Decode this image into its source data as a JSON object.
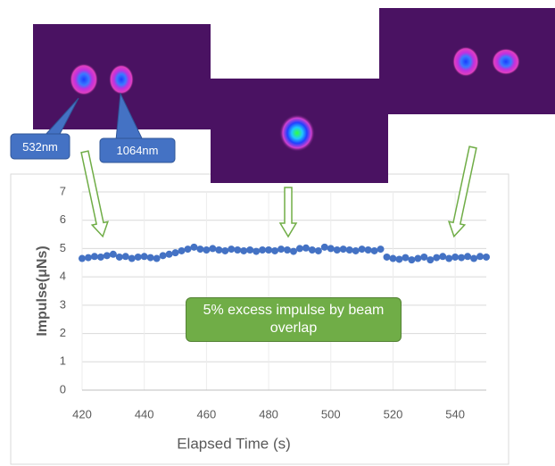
{
  "chart_data": {
    "type": "scatter",
    "x_label": "Elapsed Time (s)",
    "y_label": "Impulse(μNs)",
    "annotations": [
      "532nm",
      "1064nm",
      "5% excess impulse by beam overlap"
    ],
    "x": [
      420,
      422,
      424,
      426,
      428,
      430,
      432,
      434,
      436,
      438,
      440,
      442,
      444,
      446,
      448,
      450,
      452,
      454,
      456,
      458,
      460,
      462,
      464,
      466,
      468,
      470,
      472,
      474,
      476,
      478,
      480,
      482,
      484,
      486,
      488,
      490,
      492,
      494,
      496,
      498,
      500,
      502,
      504,
      506,
      508,
      510,
      512,
      514,
      516,
      518,
      520,
      522,
      524,
      526,
      528,
      530,
      532,
      534,
      536,
      538,
      540,
      542,
      544,
      546,
      548,
      550
    ],
    "values": [
      4.65,
      4.68,
      4.72,
      4.7,
      4.75,
      4.8,
      4.7,
      4.72,
      4.65,
      4.7,
      4.72,
      4.68,
      4.65,
      4.75,
      4.8,
      4.85,
      4.92,
      4.98,
      5.05,
      4.98,
      4.95,
      5.0,
      4.95,
      4.92,
      4.98,
      4.95,
      4.92,
      4.95,
      4.9,
      4.95,
      4.95,
      4.92,
      4.98,
      4.95,
      4.9,
      5.0,
      5.02,
      4.95,
      4.92,
      5.05,
      5.0,
      4.95,
      4.98,
      4.95,
      4.92,
      4.98,
      4.95,
      4.92,
      4.98,
      4.7,
      4.65,
      4.62,
      4.68,
      4.6,
      4.65,
      4.7,
      4.6,
      4.68,
      4.72,
      4.65,
      4.7,
      4.68,
      4.72,
      4.65,
      4.72,
      4.7
    ],
    "color": "#4472c4",
    "xlim": [
      420,
      550
    ],
    "xticks": [
      420,
      440,
      460,
      480,
      500,
      520,
      540
    ],
    "ylim": [
      0,
      7
    ],
    "yticks": [
      0,
      1,
      2,
      3,
      4,
      5,
      6,
      7
    ],
    "grid": true
  }
}
